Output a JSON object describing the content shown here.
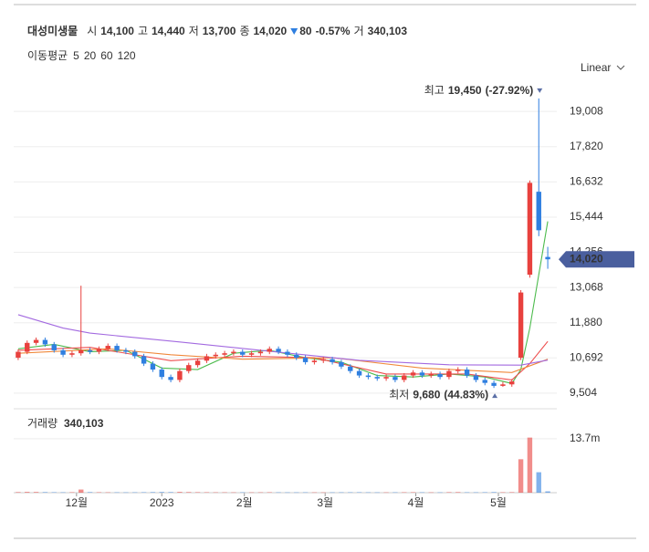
{
  "chart_data": {
    "type": "candlestick",
    "header": {
      "name": "대성미생물",
      "items": [
        {
          "label": "시",
          "value": "14,100"
        },
        {
          "label": "고",
          "value": "14,440"
        },
        {
          "label": "저",
          "value": "13,700"
        },
        {
          "label": "종",
          "value": "14,020"
        }
      ],
      "change": "80",
      "change_pct": "-0.57%",
      "volume_label": "거",
      "volume": "340,103"
    },
    "scale_button": "Linear",
    "up_color": "#e8413e",
    "down_color": "#2f7fe0",
    "x": [
      0,
      1,
      2,
      3,
      4,
      5,
      6,
      7,
      8,
      9,
      10,
      11,
      12,
      13,
      14,
      15,
      16,
      17,
      18,
      19,
      20,
      21,
      22,
      23,
      24,
      25,
      26,
      27,
      28,
      29,
      30,
      31,
      32,
      33,
      34,
      35,
      36,
      37,
      38,
      39,
      40,
      41,
      42,
      43,
      44,
      45,
      46,
      47,
      48,
      49,
      50,
      51,
      52,
      53,
      54,
      55,
      56,
      57,
      58,
      59
    ],
    "open": [
      10700,
      10900,
      11200,
      11300,
      11150,
      10950,
      10800,
      10850,
      10950,
      10900,
      11000,
      11100,
      10950,
      10900,
      10750,
      10500,
      10300,
      10050,
      9950,
      10250,
      10450,
      10600,
      10750,
      10800,
      10850,
      10900,
      10800,
      10850,
      10900,
      11000,
      10900,
      10800,
      10700,
      10550,
      10600,
      10650,
      10550,
      10400,
      10250,
      10100,
      10050,
      10000,
      10050,
      9950,
      10100,
      10200,
      10100,
      10150,
      10050,
      10250,
      10300,
      10100,
      9950,
      9850,
      9750,
      9800,
      10700,
      13500,
      16300,
      14100
    ],
    "high": [
      10980,
      11280,
      11380,
      11380,
      11230,
      11030,
      10930,
      13130,
      11030,
      11080,
      11180,
      11180,
      11030,
      10980,
      10830,
      10580,
      10380,
      10130,
      10330,
      10530,
      10680,
      10830,
      10880,
      10930,
      10980,
      10980,
      10930,
      10980,
      11080,
      11080,
      10980,
      10880,
      10780,
      10680,
      10730,
      10730,
      10630,
      10480,
      10330,
      10180,
      10130,
      10130,
      10130,
      10180,
      10280,
      10280,
      10230,
      10230,
      10330,
      10380,
      10380,
      10180,
      10030,
      9930,
      9880,
      9980,
      12980,
      16680,
      19450,
      14440
    ],
    "low": [
      10620,
      10820,
      11120,
      11070,
      10870,
      10720,
      10720,
      10770,
      10820,
      10820,
      10920,
      10870,
      10820,
      10670,
      10420,
      10220,
      9970,
      9870,
      9870,
      10170,
      10370,
      10520,
      10670,
      10720,
      10770,
      10720,
      10720,
      10770,
      10820,
      10820,
      10720,
      10620,
      10470,
      10470,
      10520,
      10470,
      10320,
      10170,
      10020,
      9970,
      9920,
      9920,
      9870,
      9870,
      10020,
      10020,
      10020,
      9970,
      9970,
      10170,
      10020,
      9870,
      9770,
      9680,
      9720,
      9720,
      10620,
      13400,
      14800,
      13700
    ],
    "close": [
      10900,
      11200,
      11300,
      11150,
      10950,
      10800,
      10850,
      10950,
      10900,
      11000,
      11100,
      10950,
      10900,
      10750,
      10500,
      10300,
      10050,
      9950,
      10250,
      10450,
      10600,
      10750,
      10800,
      10850,
      10900,
      10800,
      10850,
      10900,
      11000,
      10900,
      10800,
      10700,
      10550,
      10600,
      10650,
      10550,
      10400,
      10250,
      10100,
      10050,
      10000,
      10050,
      9950,
      10100,
      10200,
      10100,
      10150,
      10050,
      10250,
      10300,
      10100,
      9950,
      9850,
      9750,
      9800,
      9900,
      12900,
      16600,
      15000,
      14020
    ],
    "volume": [
      150000,
      200000,
      180000,
      150000,
      120000,
      100000,
      120000,
      800000,
      150000,
      120000,
      100000,
      100000,
      90000,
      100000,
      120000,
      150000,
      180000,
      150000,
      200000,
      160000,
      130000,
      120000,
      100000,
      100000,
      90000,
      100000,
      90000,
      100000,
      120000,
      100000,
      90000,
      90000,
      100000,
      90000,
      80000,
      90000,
      100000,
      110000,
      120000,
      100000,
      90000,
      90000,
      100000,
      110000,
      120000,
      100000,
      90000,
      90000,
      130000,
      150000,
      110000,
      100000,
      120000,
      150000,
      110000,
      130000,
      8500000,
      14000000,
      5200000,
      340103
    ],
    "xlim": [
      -0.5,
      59.5
    ],
    "xticks": [
      {
        "value": 6.5,
        "label": "12월"
      },
      {
        "value": 16,
        "label": "2023"
      },
      {
        "value": 25.2,
        "label": "2월"
      },
      {
        "value": 34.2,
        "label": "3월"
      },
      {
        "value": 44.3,
        "label": "4월"
      },
      {
        "value": 53.5,
        "label": "5월"
      }
    ],
    "ylim": [
      9070,
      20060
    ],
    "yticks": [
      {
        "value": 9504,
        "label": "9,504"
      },
      {
        "value": 10692,
        "label": "10,692"
      },
      {
        "value": 11880,
        "label": "11,880"
      },
      {
        "value": 13068,
        "label": "13,068"
      },
      {
        "value": 14256,
        "label": "14,256"
      },
      {
        "value": 15444,
        "label": "15,444"
      },
      {
        "value": 16632,
        "label": "16,632"
      },
      {
        "value": 17820,
        "label": "17,820"
      },
      {
        "value": 19008,
        "label": "19,008"
      }
    ],
    "grid": true,
    "volume_title": "거래량",
    "volume_value": "340,103",
    "vlim": [
      0,
      20400000
    ],
    "vticks": [
      {
        "value": 13700000,
        "label": "13.7m"
      }
    ],
    "last_price": {
      "value": 14020,
      "label": "14,020"
    },
    "annotations": [
      {
        "label": "최고",
        "value": 19450,
        "value_label": "19,450",
        "change": "(-27.92%)",
        "x": 58
      },
      {
        "label": "최저",
        "value": 9680,
        "value_label": "9,680",
        "change": "(44.83%)",
        "x": 53
      }
    ],
    "ma": {
      "label": "이동평균",
      "series": [
        {
          "name": "5",
          "color": "#4cbb4c",
          "x": [
            0,
            4,
            8,
            12,
            16,
            20,
            24,
            28,
            32,
            36,
            40,
            44,
            48,
            52,
            55,
            56,
            57,
            58,
            59
          ],
          "values": [
            11000,
            11150,
            10900,
            10950,
            10350,
            10300,
            10850,
            10950,
            10700,
            10550,
            10100,
            10050,
            10150,
            10050,
            9830,
            10300,
            11700,
            13500,
            15300
          ]
        },
        {
          "name": "20",
          "color": "#ee4d4d",
          "x": [
            0,
            8,
            17,
            25,
            33,
            41,
            50,
            55,
            57,
            59
          ],
          "values": [
            10950,
            11050,
            10600,
            10750,
            10700,
            10150,
            10150,
            9950,
            10500,
            11250
          ]
        },
        {
          "name": "60",
          "color": "#f0883a",
          "x": [
            0,
            10,
            17,
            25,
            35,
            45,
            55,
            59
          ],
          "values": [
            10850,
            11000,
            10800,
            10650,
            10700,
            10350,
            10200,
            10650
          ]
        },
        {
          "name": "120",
          "color": "#a36ae0",
          "x": [
            0,
            5,
            8,
            18,
            28,
            38,
            48,
            56,
            59
          ],
          "values": [
            12150,
            11700,
            11530,
            11230,
            10920,
            10610,
            10460,
            10450,
            10620
          ]
        }
      ]
    }
  }
}
